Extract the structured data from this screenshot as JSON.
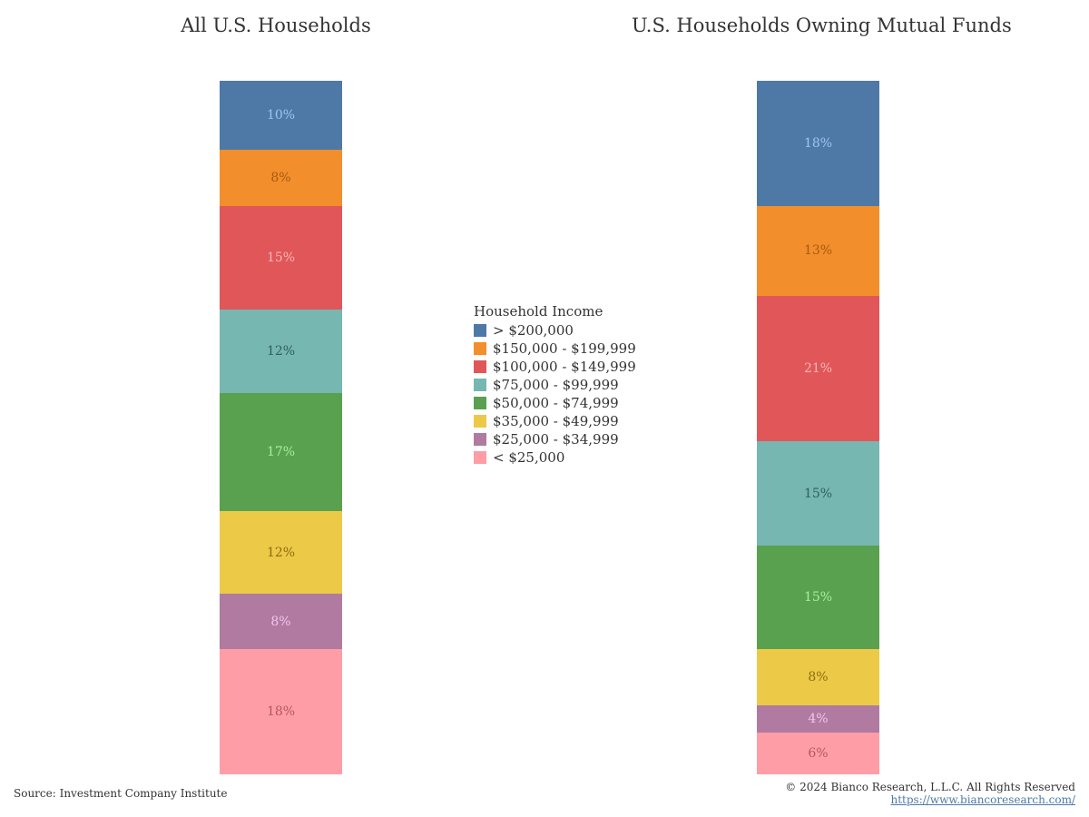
{
  "chart_data": {
    "type": "bar",
    "stacked": true,
    "legend_title": "Household Income",
    "legend_position": "center",
    "categories": [
      "> $200,000",
      "$150,000 - $199,999",
      "$100,000 - $149,999",
      "$75,000 - $99,999",
      "$50,000 - $74,999",
      "$35,000 - $49,999",
      "$25,000 - $34,999",
      "< $25,000"
    ],
    "colors": [
      "#4e79a7",
      "#f28e2b",
      "#e15759",
      "#76b7b2",
      "#59a14f",
      "#edc948",
      "#b07aa1",
      "#ff9da7"
    ],
    "label_colors": [
      "#9fc3ee",
      "#a65a10",
      "#f4b6b6",
      "#2f5f5b",
      "#a6ee98",
      "#8a6e10",
      "#f4c5ec",
      "#b8545c"
    ],
    "panels": [
      {
        "title": "All U.S. Households",
        "values": [
          10,
          8,
          15,
          12,
          17,
          12,
          8,
          18
        ],
        "labels": [
          "10%",
          "8%",
          "15%",
          "12%",
          "17%",
          "12%",
          "8%",
          "18%"
        ]
      },
      {
        "title": "U.S. Households Owning Mutual Funds",
        "values": [
          18,
          13,
          21,
          15,
          15,
          8,
          4,
          6
        ],
        "labels": [
          "18%",
          "13%",
          "21%",
          "15%",
          "15%",
          "8%",
          "4%",
          "6%"
        ]
      }
    ]
  },
  "footer": {
    "source": "Source: Investment Company Institute",
    "copyright": "© 2024 Bianco Research, L.L.C. All Rights Reserved",
    "url": "https://www.biancoresearch.com/"
  }
}
